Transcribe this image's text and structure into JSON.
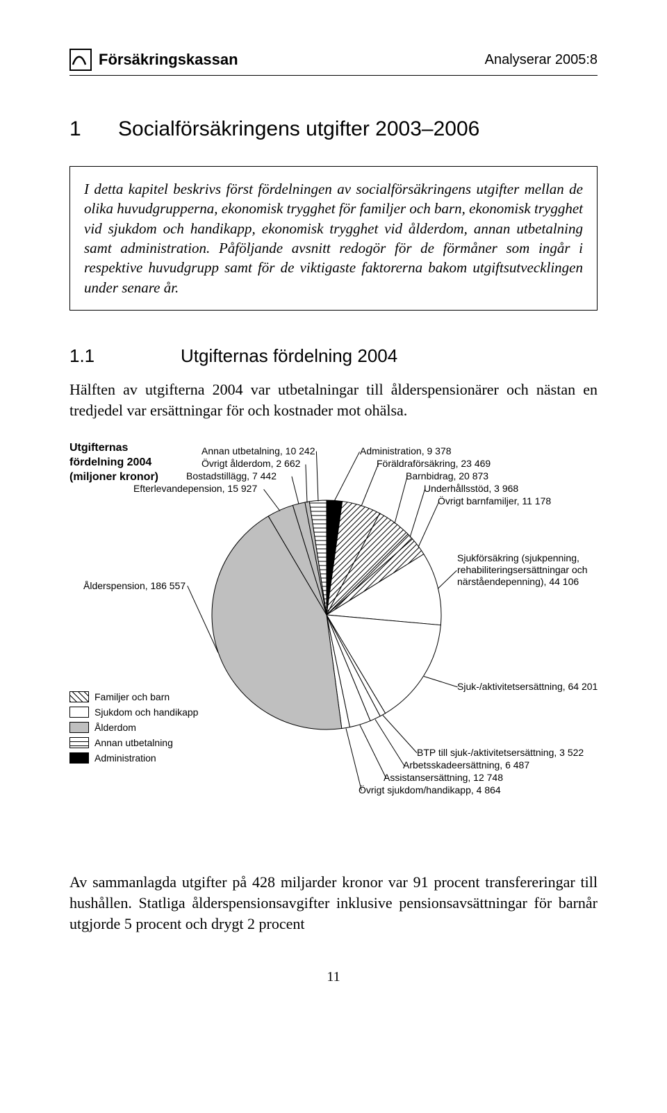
{
  "header": {
    "org": "Försäkringskassan",
    "doc_id": "Analyserar 2005:8"
  },
  "chapter": {
    "num": "1",
    "title": "Socialförsäkringens utgifter 2003–2006"
  },
  "intro": "I detta kapitel beskrivs först fördelningen av socialförsäkringens utgifter mellan de olika huvudgrupperna, ekonomisk trygghet för familjer och barn, ekonomisk trygghet vid sjukdom och handikapp, ekonomisk trygghet vid ålderdom, annan utbetalning samt administration. Påföljande avsnitt redogör för de förmåner som ingår i respektive huvudgrupp samt för de viktigaste faktorerna bakom utgiftsutvecklingen under senare år.",
  "section": {
    "num": "1.1",
    "title": "Utgifternas fördelning 2004"
  },
  "para1": "Hälften av utgifterna 2004 var utbetalningar till ålderspensionärer och nästan en tredjedel var ersättningar för och kostnader mot ohälsa.",
  "para2": "Av sammanlagda utgifter på 428 miljarder kronor var 91 procent transfereringar till hushållen. Statliga ålderspensionsavgifter inklusive pensionsavsättningar för barnår utgjorde 5 procent och drygt 2 procent",
  "page_number": "11",
  "chart": {
    "title_lines": [
      "Utgifternas",
      "fördelning 2004",
      "(miljoner kronor)"
    ],
    "labels": {
      "annan_utbetalning": "Annan utbetalning, 10 242",
      "ovrigt_alderdom": "Övrigt ålderdom, 2 662",
      "bostadstillagg": "Bostadstillägg, 7 442",
      "efterlevande": "Efterlevandepension, 15 927",
      "alderspension": "Ålderspension, 186 557",
      "administration": "Administration, 9 378",
      "foraldra": "Föräldraförsäkring, 23 469",
      "barnbidrag": "Barnbidrag, 20 873",
      "underhall": "Underhållsstöd, 3 968",
      "ovrigt_barnfam": "Övrigt barnfamiljer, 11 178",
      "sjukforsakring": "Sjukförsäkring (sjukpenning,\nrehabiliteringsersättningar och\nnärståendepenning), 44 106",
      "sjuk_aktiv": "Sjuk-/aktivitetsersättning, 64 201",
      "btp": "BTP till sjuk-/aktivitetsersättning, 3 522",
      "arbetsskade": "Arbetsskadeersättning, 6 487",
      "assistans": "Assistansersättning, 12 748",
      "ovrigt_sjukdom": "Övrigt sjukdom/handikapp, 4 864"
    },
    "legend": [
      {
        "label": "Familjer och barn",
        "fill": "hatch-diag"
      },
      {
        "label": "Sjukdom och handikapp",
        "fill": "white"
      },
      {
        "label": "Ålderdom",
        "fill": "gray"
      },
      {
        "label": "Annan utbetalning",
        "fill": "hatch-horiz"
      },
      {
        "label": "Administration",
        "fill": "black"
      }
    ],
    "colors": {
      "gray": "#bfbfbf",
      "black": "#000000",
      "white": "#ffffff",
      "stroke": "#000000"
    },
    "slices": [
      {
        "name": "administration",
        "value": 9378,
        "fill": "black"
      },
      {
        "name": "foraldra",
        "value": 23469,
        "fill": "hatch-diag"
      },
      {
        "name": "barnbidrag",
        "value": 20873,
        "fill": "hatch-diag"
      },
      {
        "name": "underhall",
        "value": 3968,
        "fill": "hatch-diag"
      },
      {
        "name": "ovrigt_barnfam",
        "value": 11178,
        "fill": "hatch-diag"
      },
      {
        "name": "sjukforsakring",
        "value": 44106,
        "fill": "white"
      },
      {
        "name": "sjuk_aktiv",
        "value": 64201,
        "fill": "white"
      },
      {
        "name": "btp",
        "value": 3522,
        "fill": "white"
      },
      {
        "name": "arbetsskade",
        "value": 6487,
        "fill": "white"
      },
      {
        "name": "assistans",
        "value": 12748,
        "fill": "white"
      },
      {
        "name": "ovrigt_sjukdom",
        "value": 4864,
        "fill": "white"
      },
      {
        "name": "alderspension",
        "value": 186557,
        "fill": "gray"
      },
      {
        "name": "efterlevande",
        "value": 15927,
        "fill": "gray"
      },
      {
        "name": "bostadstillagg",
        "value": 7442,
        "fill": "gray"
      },
      {
        "name": "ovrigt_alderdom",
        "value": 2662,
        "fill": "gray"
      },
      {
        "name": "annan_utbetalning",
        "value": 10242,
        "fill": "hatch-horiz"
      }
    ]
  }
}
